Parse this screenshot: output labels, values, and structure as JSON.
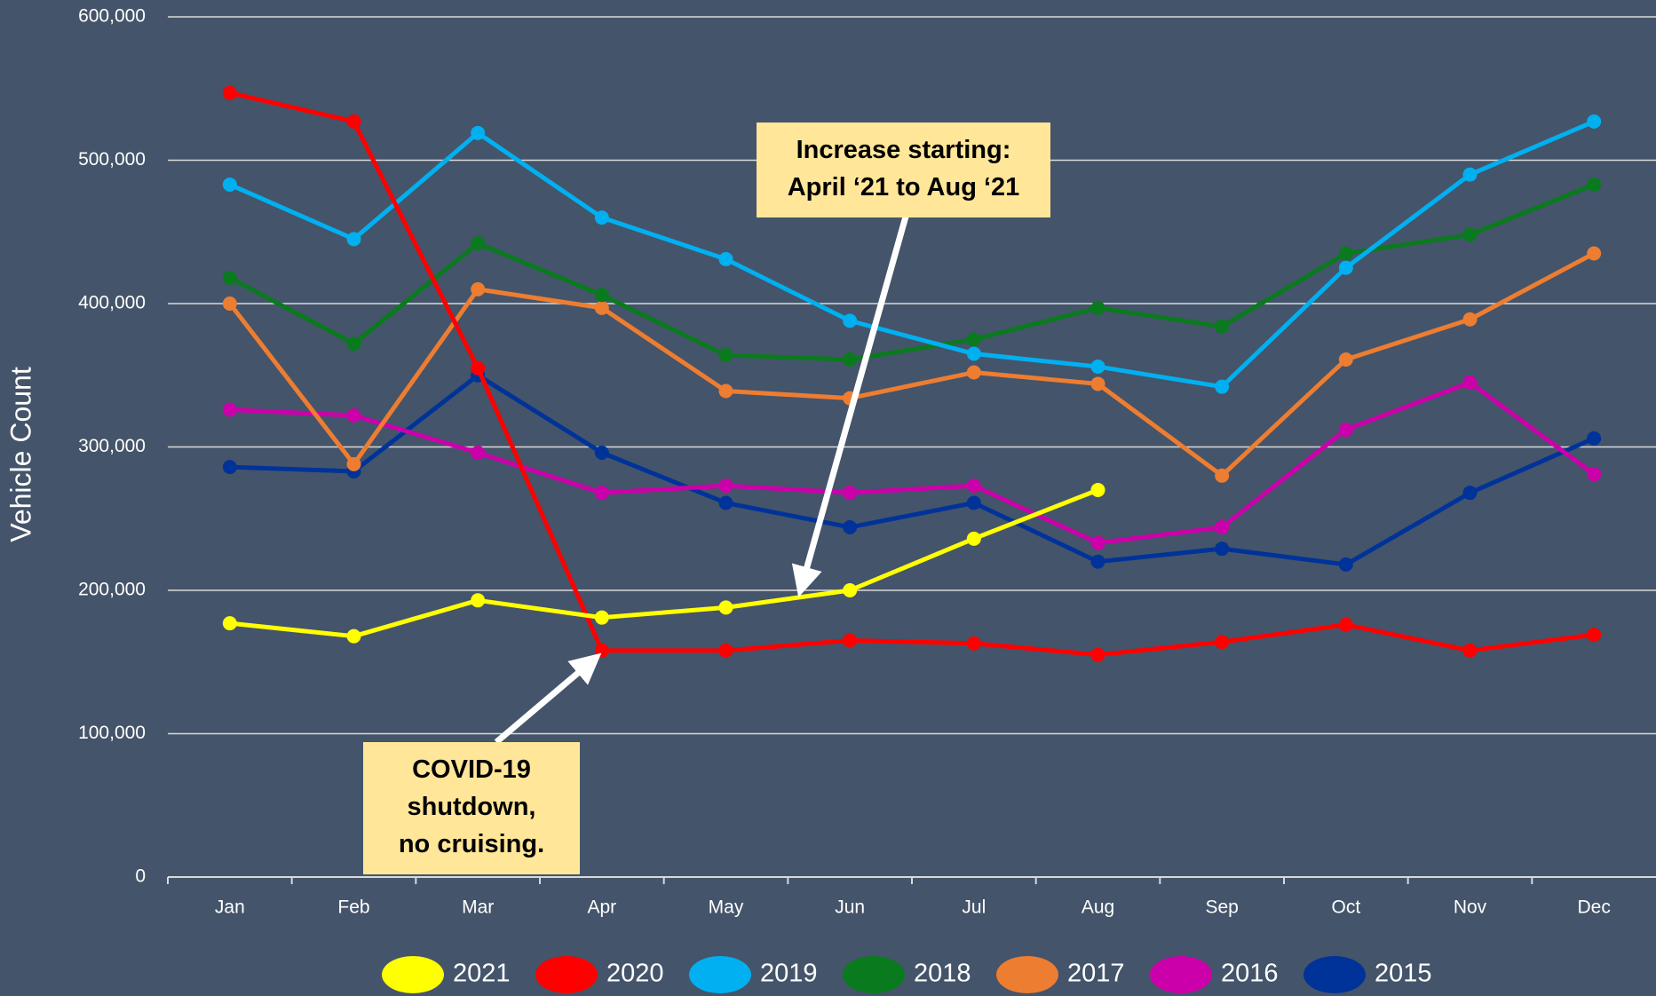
{
  "chart_data": {
    "type": "line",
    "y_axis_label": "Vehicle Count",
    "categories": [
      "Jan",
      "Feb",
      "Mar",
      "Apr",
      "May",
      "Jun",
      "Jul",
      "Aug",
      "Sep",
      "Oct",
      "Nov",
      "Dec"
    ],
    "series": [
      {
        "name": "2021",
        "color": "#ffff00",
        "values": [
          177000,
          168000,
          193000,
          181000,
          188000,
          200000,
          236000,
          270000,
          null,
          null,
          null,
          null
        ]
      },
      {
        "name": "2020",
        "color": "#ff0000",
        "values": [
          547000,
          527000,
          355000,
          158000,
          158000,
          165000,
          163000,
          155000,
          164000,
          176000,
          158000,
          169000
        ]
      },
      {
        "name": "2019",
        "color": "#00b0f0",
        "values": [
          483000,
          445000,
          519000,
          460000,
          431000,
          388000,
          365000,
          356000,
          342000,
          425000,
          490000,
          527000
        ]
      },
      {
        "name": "2018",
        "color": "#0a7a1e",
        "values": [
          418000,
          372000,
          442000,
          406000,
          364000,
          361000,
          375000,
          397000,
          384000,
          435000,
          448000,
          483000
        ]
      },
      {
        "name": "2017",
        "color": "#ed7d31",
        "values": [
          400000,
          288000,
          410000,
          397000,
          339000,
          334000,
          352000,
          344000,
          280000,
          361000,
          389000,
          435000
        ]
      },
      {
        "name": "2016",
        "color": "#cc00aa",
        "values": [
          326000,
          322000,
          296000,
          268000,
          273000,
          268000,
          273000,
          233000,
          244000,
          312000,
          345000,
          281000
        ]
      },
      {
        "name": "2015",
        "color": "#003399",
        "values": [
          286000,
          283000,
          350000,
          296000,
          261000,
          244000,
          261000,
          220000,
          229000,
          218000,
          268000,
          306000
        ]
      }
    ],
    "ylim": [
      0,
      600000
    ],
    "yticks": [
      0,
      {
        "value": 100000,
        "label": "100,000"
      },
      {
        "value": 200000,
        "label": "200,000"
      },
      {
        "value": 300000,
        "label": "300,000"
      },
      {
        "value": 400000,
        "label": "400,000"
      },
      {
        "value": 500000,
        "label": "500,000"
      },
      {
        "value": 600000,
        "label": "600,000"
      }
    ],
    "grid": true,
    "legend": "bottom",
    "annotations": [
      {
        "lines": [
          "Increase starting:",
          "April ‘21 to Aug ‘21"
        ]
      },
      {
        "lines": [
          "COVID-19",
          "shutdown,",
          "no cruising."
        ]
      }
    ]
  }
}
